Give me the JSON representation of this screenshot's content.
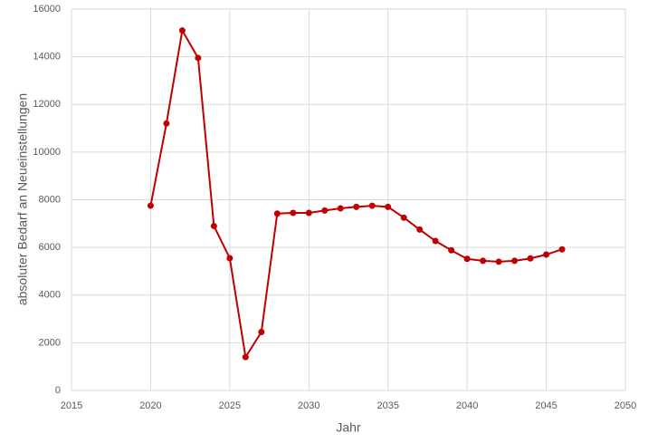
{
  "chart_data": {
    "type": "line",
    "x_label": "Jahr",
    "y_label": "absoluter Bedarf an Neueinstellungen",
    "x": [
      2020,
      2021,
      2022,
      2023,
      2024,
      2025,
      2026,
      2027,
      2028,
      2029,
      2030,
      2031,
      2032,
      2033,
      2034,
      2035,
      2036,
      2037,
      2038,
      2039,
      2040,
      2041,
      2042,
      2043,
      2044,
      2045,
      2046
    ],
    "series": [
      {
        "color": "#c00000",
        "values": [
          7750,
          11200,
          15100,
          13950,
          6900,
          5550,
          1400,
          2450,
          7420,
          7450,
          7450,
          7550,
          7640,
          7700,
          7750,
          7700,
          7250,
          6750,
          6270,
          5880,
          5520,
          5440,
          5400,
          5440,
          5540,
          5700,
          5920
        ]
      }
    ],
    "xlim": [
      2015,
      2050
    ],
    "xticks": [
      2015,
      2020,
      2025,
      2030,
      2035,
      2040,
      2045,
      2050
    ],
    "ylim": [
      0,
      16000
    ],
    "yticks": [
      0,
      2000,
      4000,
      6000,
      8000,
      10000,
      12000,
      14000,
      16000
    ],
    "grid": true
  }
}
